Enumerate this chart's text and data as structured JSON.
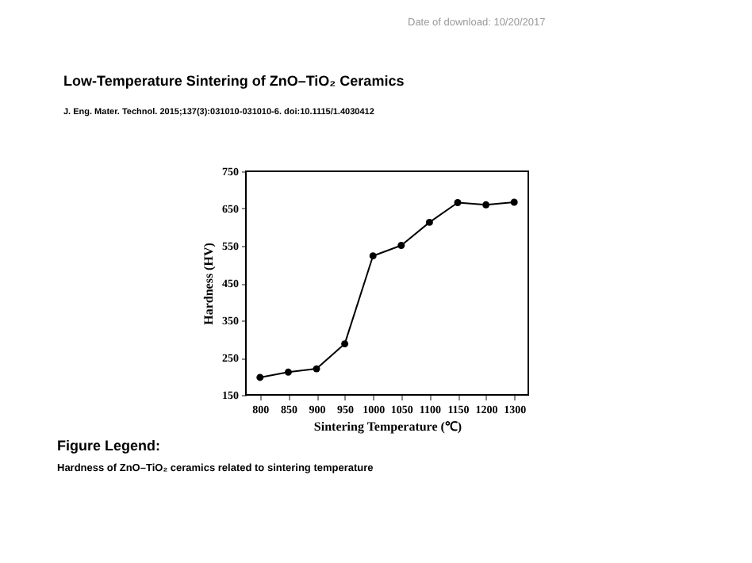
{
  "chart_data": {
    "type": "line",
    "title": "Low-Temperature Sintering of ZnO–TiO₂ Ceramics",
    "subtitle": "J. Eng. Mater. Technol. 2015;137(3):031010-031010-6. doi:10.1115/1.4030412",
    "xlabel": "Sintering Temperature (℃)",
    "ylabel": "Hardness (HV)",
    "categories": [
      "800",
      "850",
      "900",
      "950",
      "1000",
      "1050",
      "1100",
      "1150",
      "1200",
      "1300"
    ],
    "series": [
      {
        "color": "#000000",
        "values": [
          197,
          211,
          220,
          287,
          523,
          551,
          613,
          666,
          660,
          667
        ]
      }
    ],
    "ylim": [
      150,
      750
    ],
    "yticks": [
      150,
      250,
      350,
      450,
      550,
      650,
      750
    ],
    "marker": "circle",
    "line_style": "solid",
    "grid": false,
    "legend": false,
    "annotations": [
      "Date of download: 10/20/2017",
      "Figure Legend:",
      "Hardness of ZnO–TiO₂ ceramics related to sintering temperature"
    ]
  }
}
